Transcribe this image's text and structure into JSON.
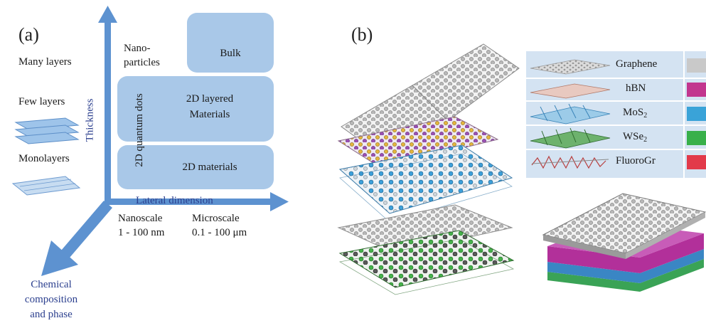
{
  "panel_a": {
    "label": "(a)",
    "layer_labels": {
      "many": "Many layers",
      "few": "Few layers",
      "mono": "Monolayers"
    },
    "thickness_axis": "Thickness",
    "lateral_axis": "Lateral dimension",
    "nanoparticles": "Nano-\nparticles",
    "quantum_dots": "2D quantum dots",
    "bulk": "Bulk",
    "layered": "2D layered\nMaterials",
    "materials_2d": "2D materials",
    "nanoscale": "Nanoscale",
    "nanoscale_range": "1 - 100 nm",
    "microscale": "Microscale",
    "microscale_range": "0.1 - 100 μm",
    "chemical": "Chemical\ncomposition\nand phase"
  },
  "panel_b": {
    "label": "(b)",
    "legend": [
      {
        "name": "Graphene",
        "color": "#c9c9c9"
      },
      {
        "name": "hBN",
        "color": "#c2368e"
      },
      {
        "name": "MoS",
        "sub": "2",
        "color": "#3aa3d8"
      },
      {
        "name": "WSe",
        "sub": "2",
        "color": "#38b04a"
      },
      {
        "name": "FluoroGr",
        "color": "#e23a4a"
      }
    ]
  }
}
